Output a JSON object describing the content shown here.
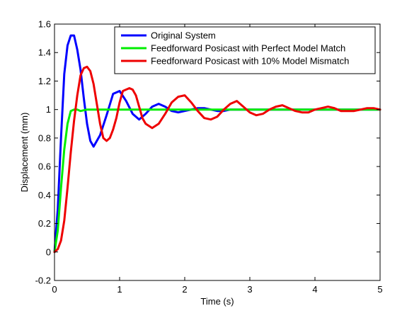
{
  "chart_data": {
    "type": "line",
    "title": "",
    "xlabel": "Time (s)",
    "ylabel": "Displacement (mm)",
    "xlim": [
      0,
      5
    ],
    "ylim": [
      -0.2,
      1.6
    ],
    "xticks": [
      0,
      1,
      2,
      3,
      4,
      5
    ],
    "yticks": [
      -0.2,
      0,
      0.2,
      0.4,
      0.6,
      0.8,
      1,
      1.2,
      1.4,
      1.6
    ],
    "xtick_labels": [
      "0",
      "1",
      "2",
      "3",
      "4",
      "5"
    ],
    "ytick_labels": [
      "-0.2",
      "0",
      "0.2",
      "0.4",
      "0.6",
      "0.8",
      "1",
      "1.2",
      "1.4",
      "1.6"
    ],
    "grid": false,
    "legend_position": "top-right",
    "series": [
      {
        "name": "Original System",
        "color": "#0000ff",
        "x": [
          0,
          0.05,
          0.1,
          0.15,
          0.2,
          0.25,
          0.3,
          0.35,
          0.4,
          0.45,
          0.5,
          0.55,
          0.6,
          0.7,
          0.8,
          0.9,
          1.0,
          1.1,
          1.2,
          1.3,
          1.4,
          1.5,
          1.6,
          1.7,
          1.8,
          1.9,
          2.0,
          2.1,
          2.2,
          2.3,
          2.4,
          2.5,
          2.6,
          2.7,
          2.8,
          3.0,
          3.2,
          3.4,
          3.6,
          3.8,
          4.0,
          4.5,
          5.0
        ],
        "y": [
          0,
          0.3,
          0.8,
          1.25,
          1.45,
          1.52,
          1.52,
          1.42,
          1.28,
          1.08,
          0.9,
          0.78,
          0.74,
          0.82,
          0.96,
          1.11,
          1.13,
          1.06,
          0.97,
          0.93,
          0.97,
          1.02,
          1.04,
          1.02,
          0.99,
          0.98,
          0.99,
          1.0,
          1.01,
          1.01,
          1.0,
          0.99,
          0.99,
          1.0,
          1.0,
          1.0,
          1.0,
          1.0,
          1.0,
          1.0,
          1.0,
          1.0,
          1.0
        ]
      },
      {
        "name": "Feedforward Posicast with Perfect Model Match",
        "color": "#00ee00",
        "x": [
          0,
          0.05,
          0.1,
          0.15,
          0.2,
          0.25,
          0.3,
          0.35,
          0.4,
          0.5,
          0.6,
          0.8,
          1.0,
          1.5,
          2.0,
          3.0,
          4.0,
          5.0
        ],
        "y": [
          0,
          0.15,
          0.45,
          0.72,
          0.9,
          0.99,
          1.0,
          1.0,
          0.99,
          1.0,
          1.0,
          1.0,
          1.0,
          1.0,
          1.0,
          1.0,
          1.0,
          1.0
        ]
      },
      {
        "name": "Feedforward Posicast with 10% Model Mismatch",
        "color": "#ee0000",
        "x": [
          0,
          0.05,
          0.1,
          0.15,
          0.2,
          0.25,
          0.3,
          0.35,
          0.4,
          0.45,
          0.5,
          0.55,
          0.6,
          0.65,
          0.7,
          0.75,
          0.8,
          0.85,
          0.9,
          0.95,
          1.0,
          1.05,
          1.1,
          1.15,
          1.2,
          1.25,
          1.3,
          1.35,
          1.4,
          1.5,
          1.6,
          1.7,
          1.8,
          1.9,
          2.0,
          2.1,
          2.2,
          2.3,
          2.4,
          2.5,
          2.6,
          2.7,
          2.8,
          2.9,
          3.0,
          3.1,
          3.2,
          3.3,
          3.4,
          3.5,
          3.6,
          3.7,
          3.8,
          3.9,
          4.0,
          4.1,
          4.2,
          4.3,
          4.4,
          4.5,
          4.6,
          4.7,
          4.8,
          4.9,
          5.0
        ],
        "y": [
          0,
          0.02,
          0.08,
          0.22,
          0.45,
          0.7,
          0.92,
          1.1,
          1.24,
          1.29,
          1.3,
          1.27,
          1.18,
          1.04,
          0.9,
          0.8,
          0.78,
          0.8,
          0.86,
          0.94,
          1.05,
          1.13,
          1.14,
          1.15,
          1.14,
          1.1,
          1.02,
          0.94,
          0.9,
          0.87,
          0.9,
          0.97,
          1.05,
          1.09,
          1.1,
          1.05,
          0.99,
          0.94,
          0.93,
          0.95,
          1.0,
          1.04,
          1.06,
          1.02,
          0.98,
          0.96,
          0.97,
          1.0,
          1.02,
          1.03,
          1.01,
          0.99,
          0.98,
          0.98,
          1.0,
          1.01,
          1.02,
          1.01,
          0.99,
          0.99,
          0.99,
          1.0,
          1.01,
          1.01,
          1.0
        ]
      }
    ]
  }
}
